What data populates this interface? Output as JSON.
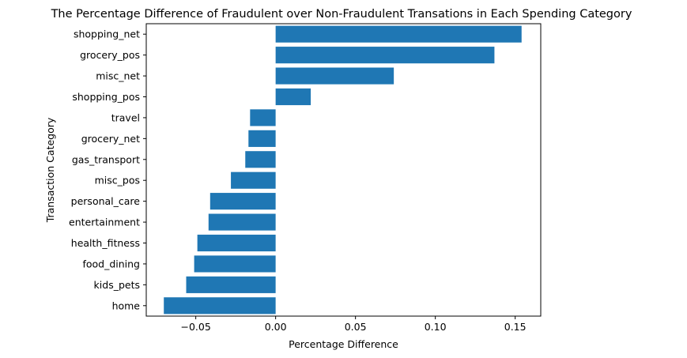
{
  "chart_data": {
    "type": "bar",
    "orientation": "horizontal",
    "title": "The Percentage Difference of Fraudulent over Non-Fraudulent Transations in Each Spending Category",
    "xlabel": "Percentage Difference",
    "ylabel": "Transaction Category",
    "categories": [
      "shopping_net",
      "grocery_pos",
      "misc_net",
      "shopping_pos",
      "travel",
      "grocery_net",
      "gas_transport",
      "misc_pos",
      "personal_care",
      "entertainment",
      "health_fitness",
      "food_dining",
      "kids_pets",
      "home"
    ],
    "values": [
      0.154,
      0.137,
      0.074,
      0.022,
      -0.016,
      -0.017,
      -0.019,
      -0.028,
      -0.041,
      -0.042,
      -0.049,
      -0.051,
      -0.056,
      -0.07
    ],
    "xlim": [
      -0.081,
      0.166
    ],
    "xticks": [
      -0.05,
      0.0,
      0.05,
      0.1,
      0.15
    ],
    "xtick_labels": [
      "−0.05",
      "0.00",
      "0.05",
      "0.10",
      "0.15"
    ],
    "bar_color": "#1f77b4",
    "grid": false,
    "legend": "none"
  }
}
